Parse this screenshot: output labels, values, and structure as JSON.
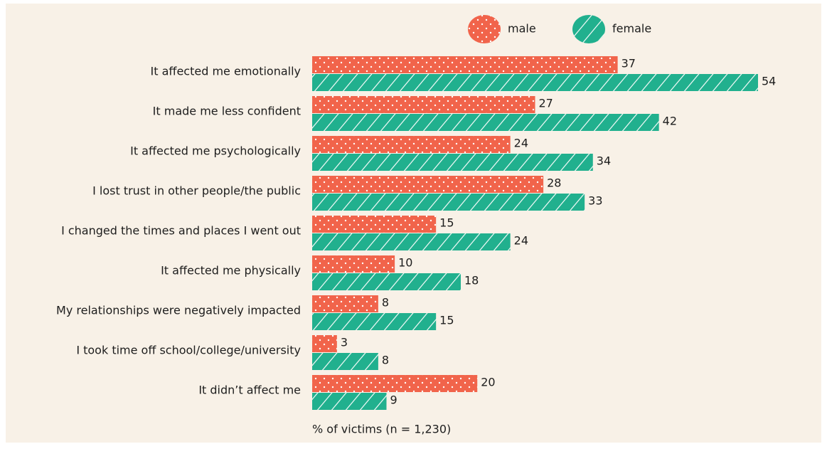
{
  "chart_data": {
    "type": "hbar",
    "categories": [
      "It affected me emotionally",
      "It made me less confident",
      "It affected me psychologically",
      "I lost trust in other people/the public",
      "I changed the times and places I went out",
      "It affected me physically",
      "My relationships were negatively impacted",
      "I took time off school/college/university",
      "It didn’t affect me"
    ],
    "series": [
      {
        "name": "male",
        "color": "#f1644b",
        "pattern": "dots",
        "values": [
          37,
          27,
          24,
          28,
          15,
          10,
          8,
          3,
          20
        ]
      },
      {
        "name": "female",
        "color": "#21b08e",
        "pattern": "hatch",
        "values": [
          54,
          42,
          34,
          33,
          24,
          18,
          15,
          8,
          9
        ]
      }
    ],
    "note": "% of victims  (n = 1,230)",
    "legend": "top-right"
  }
}
